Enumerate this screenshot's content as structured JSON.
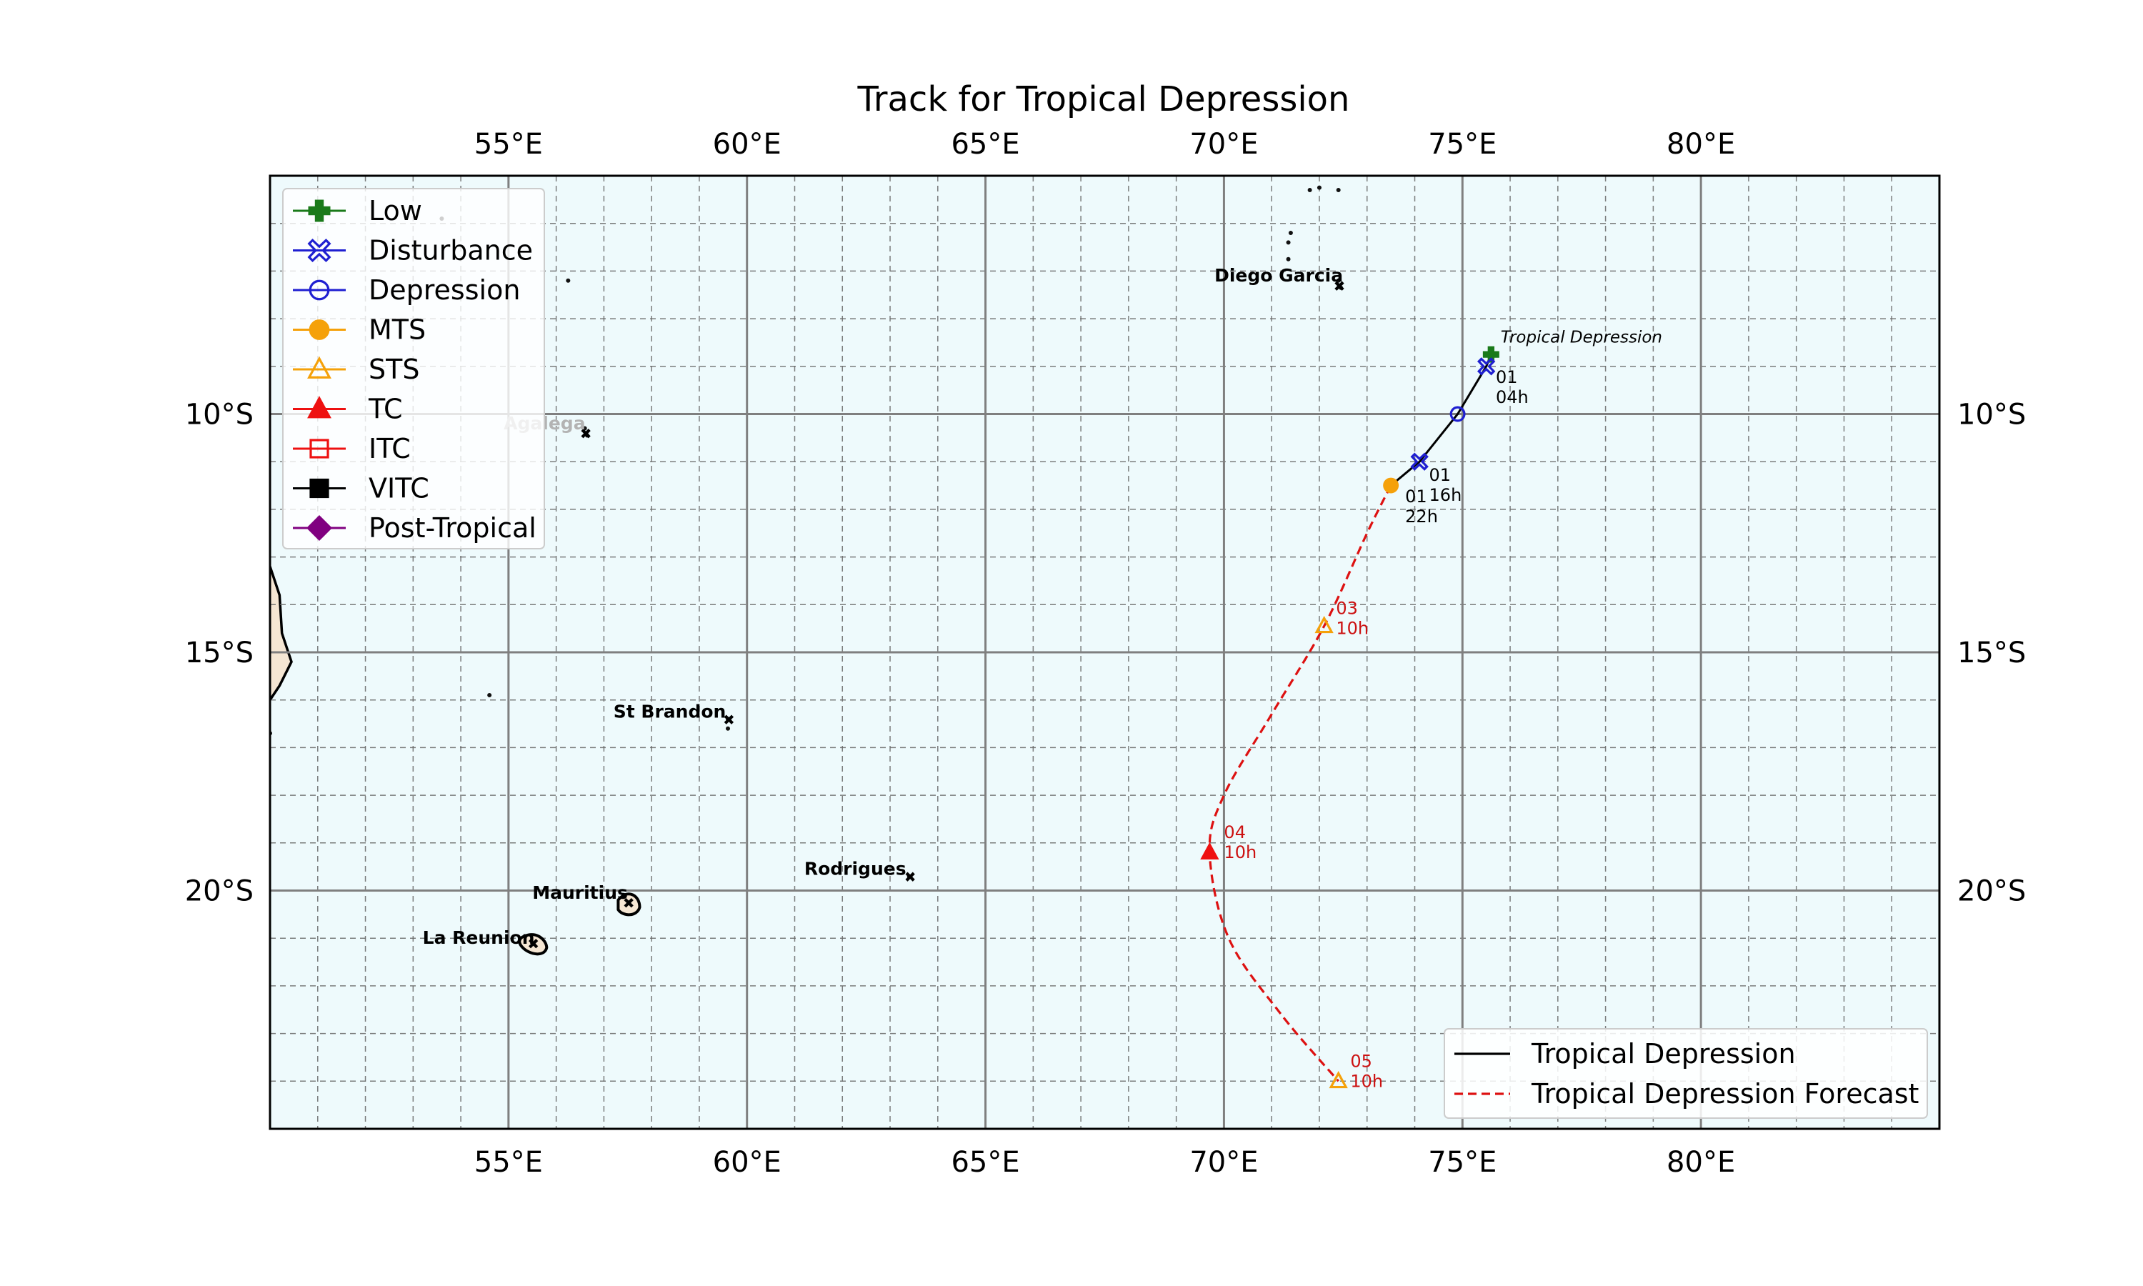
{
  "title": "Track for Tropical Depression",
  "map": {
    "ocean_color": "#eefafc",
    "land_color": "#f5e6d3",
    "lon_range": [
      50,
      85
    ],
    "lat_range": [
      -25,
      -5
    ],
    "lon_ticks": [
      55,
      60,
      65,
      70,
      75,
      80
    ],
    "lat_ticks": [
      -10,
      -15,
      -20
    ],
    "lon_tick_labels": [
      "55°E",
      "60°E",
      "65°E",
      "70°E",
      "75°E",
      "80°E"
    ],
    "lat_tick_labels": [
      "10°S",
      "15°S",
      "20°S"
    ],
    "minor_lon_ticks": [
      51,
      52,
      53,
      54,
      56,
      57,
      58,
      59,
      61,
      62,
      63,
      64,
      66,
      67,
      68,
      69,
      71,
      72,
      73,
      74,
      76,
      77,
      78,
      79,
      81,
      82,
      83,
      84
    ],
    "minor_lat_ticks": [
      -6,
      -7,
      -8,
      -9,
      -11,
      -12,
      -13,
      -14,
      -16,
      -17,
      -18,
      -19,
      -21,
      -22,
      -23,
      -24
    ]
  },
  "places": [
    {
      "name": "Diego Garcia",
      "lon": 72.4,
      "lat": -7.3,
      "label_lon": 69.8,
      "label_lat": -7.1,
      "muted": false
    },
    {
      "name": "Agalega",
      "lon": 56.6,
      "lat": -10.4,
      "label_lon": 54.9,
      "label_lat": -10.2,
      "muted": true
    },
    {
      "name": "St Brandon",
      "lon": 59.6,
      "lat": -16.4,
      "label_lon": 57.2,
      "label_lat": -16.25,
      "muted": false
    },
    {
      "name": "Rodrigues",
      "lon": 63.4,
      "lat": -19.7,
      "label_lon": 61.2,
      "label_lat": -19.55,
      "muted": false
    },
    {
      "name": "Mauritius",
      "lon": 57.5,
      "lat": -20.25,
      "label_lon": 55.5,
      "label_lat": -20.05,
      "muted": false
    },
    {
      "name": "La Reunion",
      "lon": 55.5,
      "lat": -21.1,
      "label_lon": 53.2,
      "label_lat": -21.0,
      "muted": false
    }
  ],
  "track": {
    "name": "Tropical Depression",
    "storm_label": "Tropical Depression",
    "observed": [
      {
        "lon": 75.6,
        "lat": -8.75,
        "category": "Low"
      },
      {
        "lon": 75.5,
        "lat": -9.0,
        "category": "Disturbance"
      },
      {
        "lon": 74.9,
        "lat": -10.0,
        "category": "Depression"
      },
      {
        "lon": 74.1,
        "lat": -11.0,
        "category": "Disturbance"
      },
      {
        "lon": 73.5,
        "lat": -11.5,
        "category": "MTS"
      }
    ],
    "forecast": [
      {
        "lon": 73.5,
        "lat": -11.5
      },
      {
        "lon": 73.0,
        "lat": -12.5
      },
      {
        "lon": 72.1,
        "lat": -14.45,
        "category": "STS"
      },
      {
        "lon": 71.0,
        "lat": -16.3
      },
      {
        "lon": 70.0,
        "lat": -18.0
      },
      {
        "lon": 69.7,
        "lat": -19.2,
        "category": "TC"
      },
      {
        "lon": 70.1,
        "lat": -21.0
      },
      {
        "lon": 71.2,
        "lat": -22.6
      },
      {
        "lon": 72.4,
        "lat": -24.0,
        "category": "STS"
      }
    ],
    "time_labels": [
      {
        "lon": 75.7,
        "lat": -9.35,
        "text": "01\n04h",
        "forecast": false
      },
      {
        "lon": 74.3,
        "lat": -11.4,
        "text": "01\n16h",
        "forecast": false
      },
      {
        "lon": 73.8,
        "lat": -11.85,
        "text": "01\n22h",
        "forecast": false
      },
      {
        "lon": 72.35,
        "lat": -14.2,
        "text": "03\n10h",
        "forecast": true
      },
      {
        "lon": 70.0,
        "lat": -18.9,
        "text": "04\n10h",
        "forecast": true
      },
      {
        "lon": 72.65,
        "lat": -23.7,
        "text": "05\n10h",
        "forecast": true
      }
    ]
  },
  "legend": {
    "categories": [
      {
        "label": "Low",
        "marker": "plus",
        "color": "#1a7a1a",
        "filled": true
      },
      {
        "label": "Disturbance",
        "marker": "xbox",
        "color": "#1f1fd1",
        "filled": false
      },
      {
        "label": "Depression",
        "marker": "circle",
        "color": "#1f1fd1",
        "filled": false
      },
      {
        "label": "MTS",
        "marker": "circle",
        "color": "#f5a10a",
        "filled": true
      },
      {
        "label": "STS",
        "marker": "triangle",
        "color": "#f5a10a",
        "filled": false
      },
      {
        "label": "TC",
        "marker": "triangle",
        "color": "#ee1111",
        "filled": true
      },
      {
        "label": "ITC",
        "marker": "square",
        "color": "#ee1111",
        "filled": false
      },
      {
        "label": "VITC",
        "marker": "square",
        "color": "#000000",
        "filled": true
      },
      {
        "label": "Post-Tropical",
        "marker": "diamond",
        "color": "#800080",
        "filled": true
      }
    ],
    "tracks": [
      {
        "label": "Tropical Depression",
        "color": "#000000",
        "dashed": false
      },
      {
        "label": "Tropical Depression Forecast",
        "color": "#dd1111",
        "dashed": true
      }
    ]
  }
}
